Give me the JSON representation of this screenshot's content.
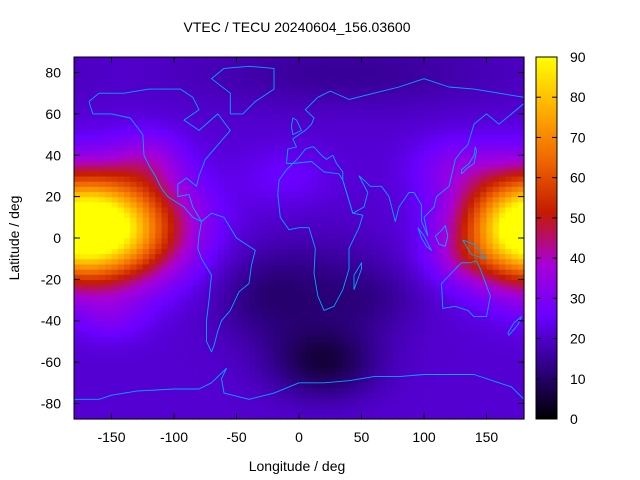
{
  "chart_data": {
    "type": "heatmap",
    "title": "VTEC / TECU 20240604_156.03600",
    "xlabel": "Longitude / deg",
    "ylabel": "Latitude / deg",
    "xlim": [
      -180,
      180
    ],
    "ylim": [
      -87.5,
      87.5
    ],
    "x_ticks": [
      -150,
      -100,
      -50,
      0,
      50,
      100,
      150
    ],
    "y_ticks": [
      -80,
      -60,
      -40,
      -20,
      0,
      20,
      40,
      60,
      80
    ],
    "colorbar": {
      "min": 0,
      "max": 90,
      "ticks": [
        0,
        10,
        20,
        30,
        40,
        50,
        60,
        70,
        80,
        90
      ],
      "colormap": [
        "#000000",
        "#2e0083",
        "#6a00ff",
        "#a800d6",
        "#c41b00",
        "#f06600",
        "#ffb000",
        "#ffff00"
      ]
    },
    "grid_step_deg": {
      "lon": 5,
      "lat": 2.5
    },
    "vtec_model": {
      "background": 21,
      "blobs": [
        {
          "lon": -145,
          "lat": 5,
          "sig_lon": 40,
          "sig_lat": 18,
          "amp": 50
        },
        {
          "lon": -120,
          "lat": 38,
          "sig_lon": 20,
          "sig_lat": 10,
          "amp": 10
        },
        {
          "lon": 175,
          "lat": 5,
          "sig_lon": 35,
          "sig_lat": 18,
          "amp": 52
        },
        {
          "lon": 125,
          "lat": 35,
          "sig_lon": 25,
          "sig_lat": 10,
          "amp": 8
        },
        {
          "lon": 130,
          "lat": -10,
          "sig_lon": 20,
          "sig_lat": 8,
          "amp": 6
        },
        {
          "lon": -150,
          "lat": -38,
          "sig_lon": 20,
          "sig_lat": 8,
          "amp": 6
        },
        {
          "lon": -10,
          "lat": 30,
          "sig_lon": 25,
          "sig_lat": 10,
          "amp": 5
        },
        {
          "lon": 20,
          "lat": -60,
          "sig_lon": 30,
          "sig_lat": 12,
          "amp": -14
        },
        {
          "lon": 10,
          "lat": -25,
          "sig_lon": 50,
          "sig_lat": 18,
          "amp": -8
        },
        {
          "lon": -30,
          "lat": -30,
          "sig_lon": 25,
          "sig_lat": 15,
          "amp": -4
        },
        {
          "lon": 60,
          "lat": -30,
          "sig_lon": 25,
          "sig_lat": 10,
          "amp": -3
        },
        {
          "lon": 40,
          "lat": 80,
          "sig_lon": 90,
          "sig_lat": 12,
          "amp": -6
        }
      ]
    },
    "coastlines": [
      {
        "name": "north-america",
        "points": [
          [
            -168,
            66
          ],
          [
            -160,
            70
          ],
          [
            -140,
            70
          ],
          [
            -120,
            72
          ],
          [
            -95,
            72
          ],
          [
            -85,
            68
          ],
          [
            -80,
            62
          ],
          [
            -92,
            57
          ],
          [
            -80,
            52
          ],
          [
            -65,
            60
          ],
          [
            -55,
            52
          ],
          [
            -65,
            45
          ],
          [
            -75,
            38
          ],
          [
            -80,
            30
          ],
          [
            -82,
            25
          ],
          [
            -90,
            29
          ],
          [
            -97,
            26
          ],
          [
            -97,
            20
          ],
          [
            -88,
            21
          ],
          [
            -85,
            15
          ],
          [
            -78,
            8
          ],
          [
            -85,
            10
          ],
          [
            -92,
            15
          ],
          [
            -105,
            20
          ],
          [
            -110,
            24
          ],
          [
            -115,
            30
          ],
          [
            -120,
            35
          ],
          [
            -124,
            40
          ],
          [
            -125,
            50
          ],
          [
            -135,
            58
          ],
          [
            -150,
            60
          ],
          [
            -165,
            60
          ],
          [
            -168,
            66
          ]
        ]
      },
      {
        "name": "greenland",
        "points": [
          [
            -55,
            60
          ],
          [
            -45,
            60
          ],
          [
            -35,
            66
          ],
          [
            -20,
            72
          ],
          [
            -20,
            82
          ],
          [
            -40,
            83
          ],
          [
            -60,
            82
          ],
          [
            -70,
            77
          ],
          [
            -55,
            70
          ],
          [
            -55,
            60
          ]
        ]
      },
      {
        "name": "south-america",
        "points": [
          [
            -78,
            8
          ],
          [
            -70,
            12
          ],
          [
            -60,
            10
          ],
          [
            -50,
            0
          ],
          [
            -35,
            -6
          ],
          [
            -38,
            -13
          ],
          [
            -40,
            -22
          ],
          [
            -48,
            -26
          ],
          [
            -55,
            -35
          ],
          [
            -62,
            -40
          ],
          [
            -65,
            -45
          ],
          [
            -68,
            -52
          ],
          [
            -70,
            -55
          ],
          [
            -74,
            -50
          ],
          [
            -74,
            -40
          ],
          [
            -72,
            -30
          ],
          [
            -70,
            -18
          ],
          [
            -78,
            -10
          ],
          [
            -81,
            -5
          ],
          [
            -80,
            1
          ],
          [
            -78,
            8
          ]
        ]
      },
      {
        "name": "eurasia",
        "points": [
          [
            -10,
            36
          ],
          [
            -9,
            43
          ],
          [
            -2,
            44
          ],
          [
            -5,
            48
          ],
          [
            5,
            52
          ],
          [
            10,
            55
          ],
          [
            12,
            58
          ],
          [
            5,
            62
          ],
          [
            15,
            68
          ],
          [
            25,
            71
          ],
          [
            40,
            67
          ],
          [
            60,
            70
          ],
          [
            80,
            73
          ],
          [
            100,
            77
          ],
          [
            120,
            73
          ],
          [
            140,
            72
          ],
          [
            160,
            70
          ],
          [
            180,
            68
          ],
          [
            180,
            65
          ],
          [
            170,
            60
          ],
          [
            160,
            55
          ],
          [
            150,
            60
          ],
          [
            140,
            55
          ],
          [
            135,
            45
          ],
          [
            130,
            42
          ],
          [
            125,
            38
          ],
          [
            122,
            30
          ],
          [
            120,
            25
          ],
          [
            110,
            20
          ],
          [
            108,
            15
          ],
          [
            100,
            10
          ],
          [
            103,
            1
          ],
          [
            98,
            8
          ],
          [
            98,
            16
          ],
          [
            92,
            22
          ],
          [
            88,
            22
          ],
          [
            80,
            15
          ],
          [
            77,
            8
          ],
          [
            72,
            20
          ],
          [
            66,
            25
          ],
          [
            57,
            25
          ],
          [
            52,
            28
          ],
          [
            48,
            30
          ],
          [
            55,
            22
          ],
          [
            52,
            15
          ],
          [
            43,
            12
          ],
          [
            35,
            28
          ],
          [
            35,
            32
          ],
          [
            30,
            36
          ],
          [
            27,
            40
          ],
          [
            22,
            38
          ],
          [
            18,
            40
          ],
          [
            12,
            44
          ],
          [
            10,
            44
          ],
          [
            5,
            43
          ],
          [
            0,
            39
          ],
          [
            -5,
            36
          ],
          [
            -10,
            36
          ]
        ]
      },
      {
        "name": "africa",
        "points": [
          [
            -17,
            21
          ],
          [
            -16,
            28
          ],
          [
            -10,
            33
          ],
          [
            -5,
            36
          ],
          [
            10,
            37
          ],
          [
            20,
            32
          ],
          [
            32,
            31
          ],
          [
            35,
            28
          ],
          [
            43,
            12
          ],
          [
            51,
            11
          ],
          [
            48,
            5
          ],
          [
            40,
            -5
          ],
          [
            40,
            -15
          ],
          [
            35,
            -25
          ],
          [
            28,
            -33
          ],
          [
            20,
            -35
          ],
          [
            15,
            -28
          ],
          [
            12,
            -17
          ],
          [
            13,
            -5
          ],
          [
            8,
            5
          ],
          [
            0,
            5
          ],
          [
            -8,
            4
          ],
          [
            -15,
            10
          ],
          [
            -17,
            21
          ]
        ]
      },
      {
        "name": "madagascar",
        "points": [
          [
            44,
            -25
          ],
          [
            50,
            -15
          ],
          [
            50,
            -12
          ],
          [
            44,
            -18
          ],
          [
            44,
            -25
          ]
        ]
      },
      {
        "name": "australia",
        "points": [
          [
            114,
            -22
          ],
          [
            115,
            -34
          ],
          [
            125,
            -33
          ],
          [
            135,
            -35
          ],
          [
            140,
            -38
          ],
          [
            150,
            -38
          ],
          [
            153,
            -28
          ],
          [
            145,
            -15
          ],
          [
            142,
            -11
          ],
          [
            137,
            -12
          ],
          [
            130,
            -12
          ],
          [
            125,
            -15
          ],
          [
            114,
            -22
          ]
        ]
      },
      {
        "name": "new-zealand",
        "points": [
          [
            167,
            -46
          ],
          [
            172,
            -41
          ],
          [
            178,
            -38
          ],
          [
            175,
            -42
          ],
          [
            168,
            -47
          ],
          [
            167,
            -46
          ]
        ]
      },
      {
        "name": "britain",
        "points": [
          [
            -5,
            50
          ],
          [
            2,
            52
          ],
          [
            -2,
            57
          ],
          [
            -5,
            58
          ],
          [
            -6,
            54
          ],
          [
            -5,
            50
          ]
        ]
      },
      {
        "name": "japan",
        "points": [
          [
            130,
            31
          ],
          [
            135,
            34
          ],
          [
            140,
            36
          ],
          [
            142,
            42
          ],
          [
            141,
            44
          ],
          [
            140,
            40
          ],
          [
            136,
            36
          ],
          [
            130,
            33
          ],
          [
            130,
            31
          ]
        ]
      },
      {
        "name": "borneo",
        "points": [
          [
            109,
            1
          ],
          [
            112,
            -3
          ],
          [
            117,
            -4
          ],
          [
            119,
            1
          ],
          [
            117,
            6
          ],
          [
            113,
            3
          ],
          [
            109,
            1
          ]
        ]
      },
      {
        "name": "sumatra",
        "points": [
          [
            95,
            5
          ],
          [
            100,
            1
          ],
          [
            106,
            -6
          ],
          [
            102,
            -4
          ],
          [
            98,
            0
          ],
          [
            95,
            5
          ]
        ]
      },
      {
        "name": "new-guinea",
        "points": [
          [
            131,
            -1
          ],
          [
            140,
            -3
          ],
          [
            150,
            -10
          ],
          [
            143,
            -9
          ],
          [
            138,
            -8
          ],
          [
            131,
            -1
          ]
        ]
      },
      {
        "name": "antarctica",
        "points": [
          [
            -180,
            -78
          ],
          [
            -160,
            -78
          ],
          [
            -150,
            -76
          ],
          [
            -130,
            -74
          ],
          [
            -100,
            -73
          ],
          [
            -80,
            -73
          ],
          [
            -70,
            -70
          ],
          [
            -58,
            -63
          ],
          [
            -62,
            -68
          ],
          [
            -60,
            -75
          ],
          [
            -40,
            -78
          ],
          [
            -20,
            -75
          ],
          [
            0,
            -70
          ],
          [
            20,
            -70
          ],
          [
            40,
            -69
          ],
          [
            60,
            -67
          ],
          [
            80,
            -67
          ],
          [
            100,
            -66
          ],
          [
            120,
            -66
          ],
          [
            140,
            -66
          ],
          [
            160,
            -70
          ],
          [
            170,
            -72
          ],
          [
            180,
            -78
          ]
        ]
      }
    ]
  }
}
